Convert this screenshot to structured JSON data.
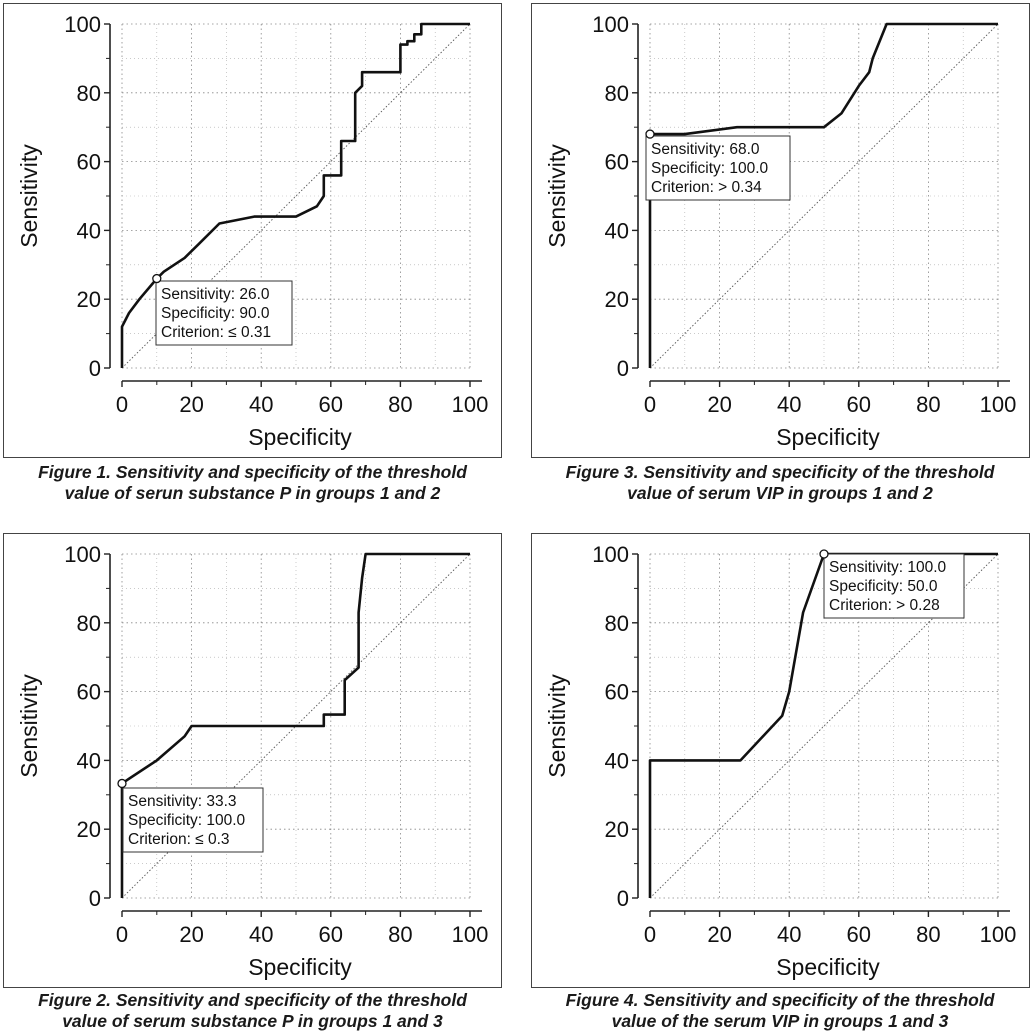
{
  "chart_data": [
    {
      "type": "line",
      "id": "fig1",
      "caption": [
        "Figure 1. Sensitivity and specificity of the threshold",
        "value of serun substance P in groups 1 and 2"
      ],
      "xlabel": "Specificity",
      "ylabel": "Sensitivity",
      "xlim": [
        0,
        100
      ],
      "ylim": [
        0,
        100
      ],
      "xticks": [
        "0",
        "20",
        "40",
        "60",
        "80",
        "100"
      ],
      "yticks": [
        "0",
        "20",
        "40",
        "60",
        "80",
        "100"
      ],
      "grid": true,
      "reference_line": "diagonal",
      "roc": {
        "x": [
          0,
          0,
          2,
          5,
          10,
          12,
          18,
          22,
          28,
          38,
          50,
          56,
          58,
          58,
          63,
          63,
          67,
          67,
          69,
          69,
          75,
          80,
          80,
          82,
          82,
          84,
          84,
          86,
          86,
          90,
          100
        ],
        "y": [
          0,
          12,
          16,
          20,
          26,
          28,
          32,
          36,
          42,
          44,
          44,
          47,
          50,
          56,
          56,
          66,
          66,
          80,
          82,
          86,
          86,
          86,
          94,
          94,
          95,
          95,
          97,
          97,
          100,
          100,
          100
        ]
      },
      "point": {
        "x": 10,
        "y": 26
      },
      "annotation": [
        "Sensitivity: 26.0",
        "Specificity: 90.0",
        "Criterion: ≤ 0.31"
      ]
    },
    {
      "type": "line",
      "id": "fig3",
      "caption": [
        "Figure 3. Sensitivity and specificity of the threshold",
        "value of serum VIP in groups 1 and 2"
      ],
      "xlabel": "Specificity",
      "ylabel": "Sensitivity",
      "xlim": [
        0,
        100
      ],
      "ylim": [
        0,
        100
      ],
      "xticks": [
        "0",
        "20",
        "40",
        "60",
        "80",
        "100"
      ],
      "yticks": [
        "0",
        "20",
        "40",
        "60",
        "80",
        "100"
      ],
      "grid": true,
      "reference_line": "diagonal",
      "roc": {
        "x": [
          0,
          0,
          10,
          25,
          50,
          55,
          60,
          63,
          64,
          68,
          72,
          100
        ],
        "y": [
          0,
          68,
          68,
          70,
          70,
          74,
          82,
          86,
          90,
          100,
          100,
          100
        ]
      },
      "point": {
        "x": 0,
        "y": 68
      },
      "annotation": [
        "Sensitivity: 68.0",
        "Specificity: 100.0",
        "Criterion: > 0.34"
      ]
    },
    {
      "type": "line",
      "id": "fig2",
      "caption": [
        "Figure 2. Sensitivity and specificity of the threshold",
        "value of serum substance P in groups 1 and 3"
      ],
      "xlabel": "Specificity",
      "ylabel": "Sensitivity",
      "xlim": [
        0,
        100
      ],
      "ylim": [
        0,
        100
      ],
      "xticks": [
        "0",
        "20",
        "40",
        "60",
        "80",
        "100"
      ],
      "yticks": [
        "0",
        "20",
        "40",
        "60",
        "80",
        "100"
      ],
      "grid": true,
      "reference_line": "diagonal",
      "roc": {
        "x": [
          0,
          0,
          10,
          18,
          20,
          58,
          58,
          64,
          64,
          68,
          68,
          69,
          70,
          100
        ],
        "y": [
          0,
          33.3,
          40,
          47,
          50,
          50,
          53.3,
          53.3,
          63.3,
          67,
          83,
          93,
          100,
          100
        ]
      },
      "point": {
        "x": 0,
        "y": 33.3
      },
      "annotation": [
        "Sensitivity: 33.3",
        "Specificity: 100.0",
        "Criterion: ≤ 0.3"
      ]
    },
    {
      "type": "line",
      "id": "fig4",
      "caption": [
        "Figure 4. Sensitivity and specificity of the threshold",
        "value of the serum VIP in groups 1 and 3"
      ],
      "xlabel": "Specificity",
      "ylabel": "Sensitivity",
      "xlim": [
        0,
        100
      ],
      "ylim": [
        0,
        100
      ],
      "xticks": [
        "0",
        "20",
        "40",
        "60",
        "80",
        "100"
      ],
      "yticks": [
        "0",
        "20",
        "40",
        "60",
        "80",
        "100"
      ],
      "grid": true,
      "reference_line": "diagonal",
      "roc": {
        "x": [
          0,
          0,
          26,
          38,
          40,
          44,
          50,
          100
        ],
        "y": [
          0,
          40,
          40,
          53,
          60,
          83,
          100,
          100
        ]
      },
      "point": {
        "x": 50,
        "y": 100
      },
      "annotation": [
        "Sensitivity: 100.0",
        "Specificity: 50.0",
        "Criterion: > 0.28"
      ]
    }
  ]
}
